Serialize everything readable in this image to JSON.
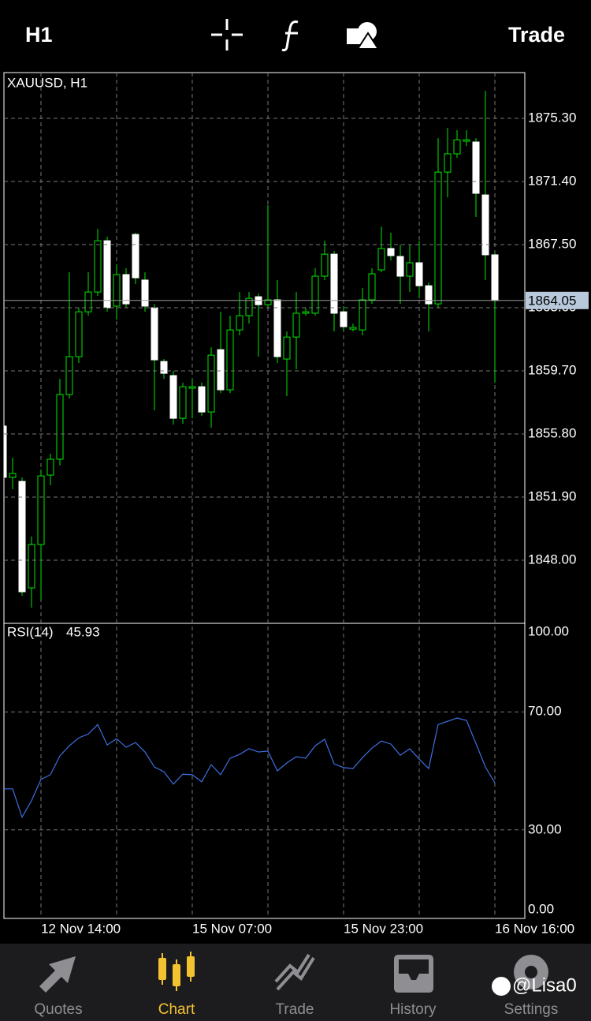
{
  "toolbar": {
    "timeframe": "H1",
    "trade": "Trade"
  },
  "chart_data": [
    {
      "type": "candlestick",
      "title": "XAUUSD, H1",
      "categories": [
        null,
        null,
        null,
        null,
        "12 Nov 14:00",
        null,
        null,
        null,
        null,
        null,
        null,
        null,
        null,
        null,
        null,
        null,
        null,
        null,
        null,
        null,
        "15 Nov 07:00",
        null,
        null,
        null,
        null,
        null,
        null,
        null,
        null,
        null,
        null,
        null,
        null,
        null,
        null,
        null,
        "15 Nov 23:00",
        null,
        null,
        null,
        null,
        null,
        null,
        null,
        null,
        null,
        null,
        null,
        null,
        null,
        null,
        null,
        "16 Nov 16:00"
      ],
      "open": [
        1856.29,
        1853.12,
        1852.87,
        1846.29,
        1848.97,
        1853.26,
        1854.24,
        1858.24,
        1860.58,
        1863.35,
        1864.57,
        1867.74,
        1863.7,
        1865.65,
        1868.13,
        1865.31,
        1863.6,
        1860.28,
        1859.41,
        1856.77,
        1858.63,
        1858.72,
        1857.16,
        1861.01,
        1858.53,
        1862.23,
        1863.11,
        1864.28,
        1863.79,
        1864.09,
        1860.43,
        1861.79,
        1863.26,
        1863.26,
        1865.55,
        1866.91,
        1863.35,
        1862.28,
        1862.23,
        1864.09,
        1865.94,
        1867.26,
        1866.77,
        1865.55,
        1866.38,
        1864.96,
        1863.84,
        1871.98,
        1873.11,
        1873.89,
        1873.84,
        1870.57,
        1866.87
      ],
      "high": [
        1856.77,
        1854.34,
        1853.12,
        1849.46,
        1853.6,
        1854.58,
        1859.21,
        1865.79,
        1863.6,
        1865.79,
        1868.47,
        1867.99,
        1866.28,
        1866.04,
        1868.23,
        1865.79,
        1863.84,
        1860.43,
        1859.7,
        1858.97,
        1859.21,
        1858.97,
        1861.16,
        1863.35,
        1863.11,
        1864.57,
        1864.57,
        1864.48,
        1869.94,
        1865.31,
        1862.14,
        1864.57,
        1863.6,
        1866.04,
        1867.74,
        1867.11,
        1863.7,
        1862.62,
        1864.82,
        1866.04,
        1868.62,
        1868.23,
        1867.5,
        1867.5,
        1867.74,
        1865.16,
        1874.08,
        1874.71,
        1874.57,
        1874.57,
        1874.08,
        1877.01,
        1867.01
      ],
      "low": [
        1852.87,
        1852.39,
        1845.8,
        1845.07,
        1845.56,
        1852.63,
        1853.85,
        1857.99,
        1860.19,
        1863.11,
        1864.33,
        1863.35,
        1862.87,
        1863.6,
        1865.06,
        1863.35,
        1857.26,
        1859.21,
        1856.38,
        1856.43,
        1856.77,
        1856.92,
        1856.19,
        1858.33,
        1858.33,
        1861.89,
        1862.62,
        1860.58,
        1863.6,
        1860.19,
        1858.14,
        1859.8,
        1863.11,
        1863.11,
        1865.31,
        1862.14,
        1862.14,
        1862.14,
        1861.89,
        1863.84,
        1865.79,
        1866.52,
        1863.84,
        1864.57,
        1864.18,
        1862.14,
        1863.6,
        1870.42,
        1872.86,
        1873.59,
        1869.21,
        1865.31,
        1858.97
      ],
      "close": [
        1853.12,
        1853.36,
        1846.05,
        1848.97,
        1853.21,
        1854.24,
        1858.24,
        1860.58,
        1863.35,
        1864.57,
        1867.74,
        1863.6,
        1865.65,
        1863.84,
        1865.45,
        1863.7,
        1860.38,
        1859.55,
        1856.77,
        1858.72,
        1858.72,
        1857.16,
        1860.67,
        1858.53,
        1862.23,
        1863.11,
        1864.18,
        1863.79,
        1864.09,
        1860.58,
        1861.79,
        1863.26,
        1863.35,
        1865.55,
        1866.91,
        1863.26,
        1862.43,
        1862.38,
        1864.09,
        1865.7,
        1867.26,
        1866.82,
        1865.55,
        1866.38,
        1864.96,
        1863.84,
        1871.98,
        1873.11,
        1873.98,
        1873.98,
        1870.67,
        1866.87,
        1864.05
      ],
      "up_color": "#000000",
      "down_color": "#ffffff",
      "wick_color": "#00e600",
      "ylim": [
        1844.1,
        1878.13
      ],
      "yticks": [
        {
          "value": 1848.0,
          "label": "1848.00"
        },
        {
          "value": 1851.9,
          "label": "1851.90"
        },
        {
          "value": 1855.8,
          "label": "1855.80"
        },
        {
          "value": 1859.7,
          "label": "1859.70"
        },
        {
          "value": 1863.6,
          "label": "1863.60"
        },
        {
          "value": 1867.5,
          "label": "1867.50"
        },
        {
          "value": 1871.4,
          "label": "1871.40"
        },
        {
          "value": 1875.3,
          "label": "1875.30"
        }
      ],
      "grid": true
    },
    {
      "type": "line",
      "series": [
        {
          "name": "RSI(14)",
          "color": "#3d6fe0",
          "values": [
            43.9,
            43.9,
            34.3,
            39.9,
            47.1,
            48.7,
            55.1,
            58.5,
            61.2,
            62.5,
            65.7,
            58.8,
            60.9,
            58.0,
            59.6,
            56.4,
            51.3,
            49.7,
            45.5,
            48.9,
            48.7,
            46.3,
            52.1,
            48.7,
            54.3,
            55.6,
            57.5,
            56.4,
            56.7,
            50.0,
            52.7,
            54.8,
            54.3,
            58.5,
            60.7,
            52.4,
            51.1,
            50.8,
            54.5,
            57.7,
            60.1,
            59.1,
            55.3,
            57.5,
            54.0,
            50.8,
            65.7,
            66.8,
            67.9,
            67.1,
            59.3,
            51.3,
            45.93
          ]
        }
      ],
      "ylim": [
        0,
        100
      ],
      "yticks": [
        {
          "value": 0,
          "label": "0.00"
        },
        {
          "value": 30,
          "label": "30.00"
        },
        {
          "value": 70,
          "label": "70.00"
        },
        {
          "value": 100,
          "label": "100.00"
        }
      ],
      "grid": true
    }
  ],
  "tabs": [
    {
      "label": "Quotes"
    },
    {
      "label": "Chart"
    },
    {
      "label": "Trade"
    },
    {
      "label": "History"
    },
    {
      "label": "Settings"
    }
  ],
  "watermark": "@Lisa0"
}
